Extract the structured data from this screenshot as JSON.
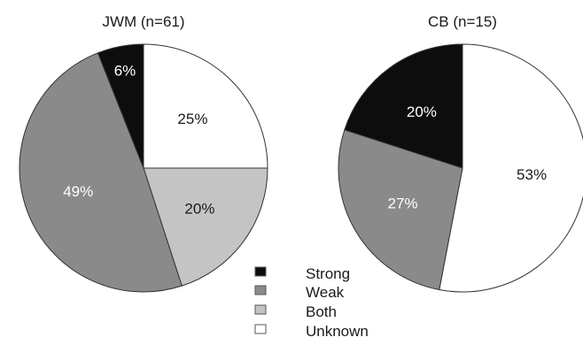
{
  "chart_data": [
    {
      "type": "pie",
      "title": "JWM (n=61)",
      "slices": [
        {
          "label": "Unknown",
          "value": 25,
          "display": "25%",
          "color": "#ffffff",
          "text_color": "#1a1a1a"
        },
        {
          "label": "Both",
          "value": 20,
          "display": "20%",
          "color": "#c4c4c4",
          "text_color": "#1a1a1a"
        },
        {
          "label": "Weak",
          "value": 49,
          "display": "49%",
          "color": "#8a8a8a",
          "text_color": "#ffffff"
        },
        {
          "label": "Strong",
          "value": 6,
          "display": "6%",
          "color": "#0d0d0d",
          "text_color": "#ffffff"
        }
      ]
    },
    {
      "type": "pie",
      "title": "CB (n=15)",
      "slices": [
        {
          "label": "Unknown",
          "value": 53,
          "display": "53%",
          "color": "#ffffff",
          "text_color": "#1a1a1a"
        },
        {
          "label": "Weak",
          "value": 27,
          "display": "27%",
          "color": "#8a8a8a",
          "text_color": "#ffffff"
        },
        {
          "label": "Strong",
          "value": 20,
          "display": "20%",
          "color": "#0d0d0d",
          "text_color": "#ffffff"
        }
      ]
    }
  ],
  "legend": {
    "items": [
      {
        "label": "Strong",
        "color": "#0d0d0d"
      },
      {
        "label": "Weak",
        "color": "#8a8a8a"
      },
      {
        "label": "Both",
        "color": "#c4c4c4"
      },
      {
        "label": "Unknown",
        "color": "#ffffff"
      }
    ]
  }
}
